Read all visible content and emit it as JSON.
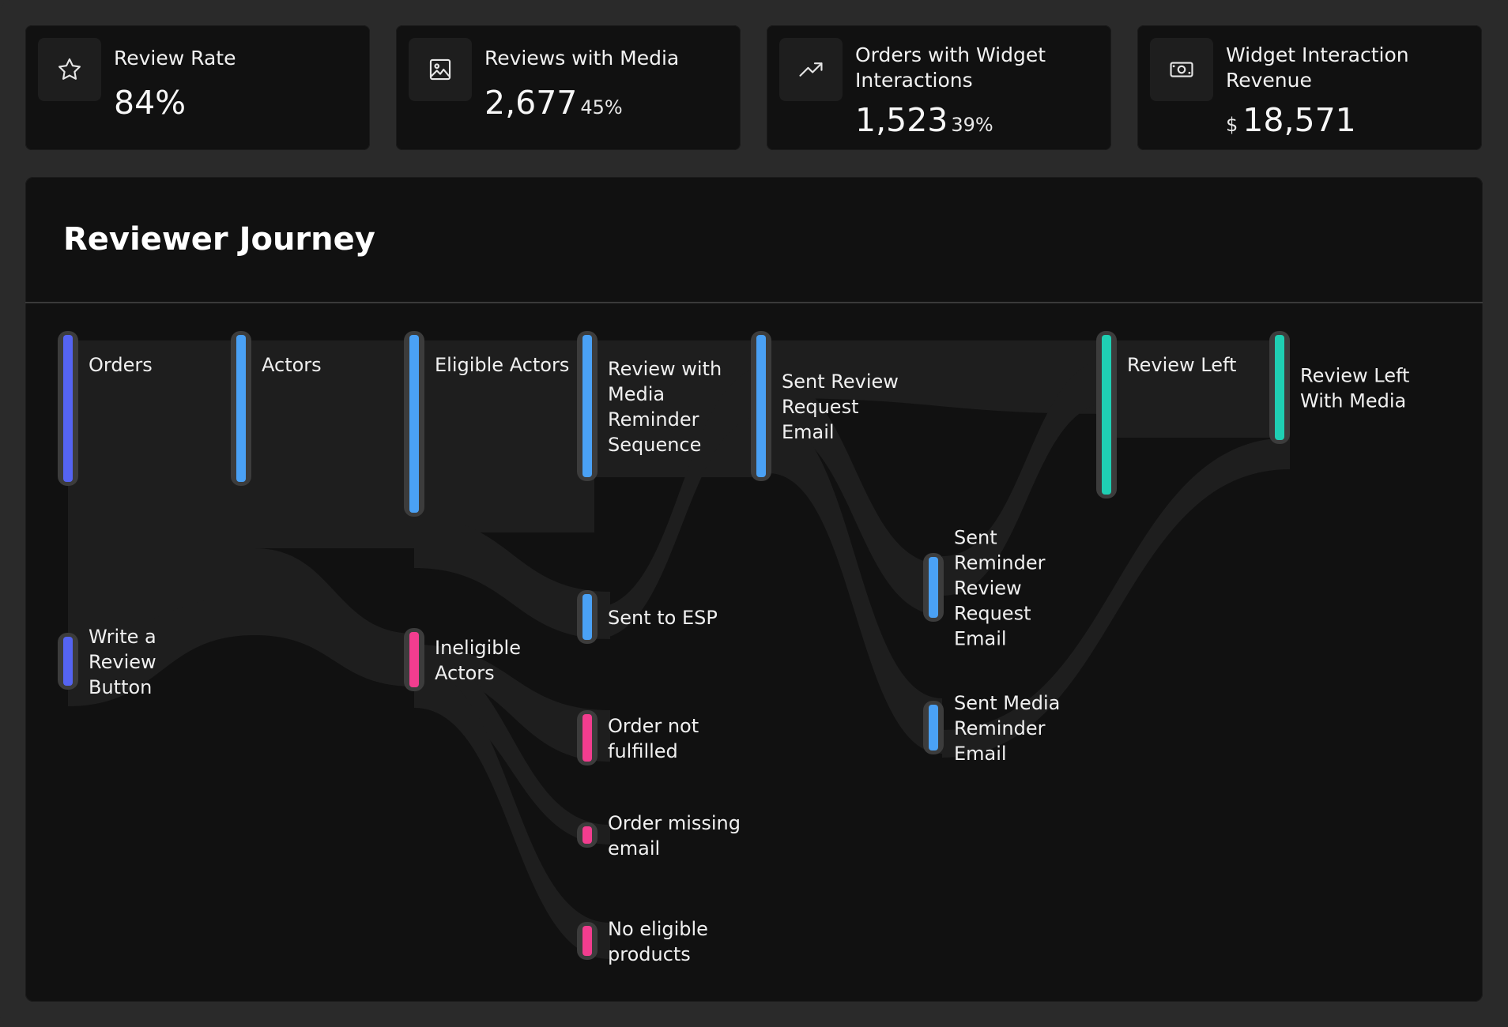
{
  "kpis": [
    {
      "label": "Review Rate",
      "value": "84%",
      "pct": "",
      "currency": "",
      "icon": "star-icon"
    },
    {
      "label": "Reviews with Media",
      "value": "2,677",
      "pct": "45%",
      "currency": "",
      "icon": "image-icon"
    },
    {
      "label": "Orders with Widget Interactions",
      "value": "1,523",
      "pct": "39%",
      "currency": "",
      "icon": "trending-up-icon"
    },
    {
      "label": "Widget Interaction Revenue",
      "value": "18,571",
      "pct": "",
      "currency": "$",
      "icon": "banknote-icon"
    }
  ],
  "journey": {
    "title": "Reviewer Journey",
    "colors": {
      "blue_dark": "#5564f2",
      "blue": "#4aa1f5",
      "pink": "#f23d8f",
      "teal": "#1fcfb3",
      "flow": "#1e1e1e",
      "node_border": "#3c3c3c"
    },
    "nodes": [
      {
        "id": "orders",
        "label": "Orders",
        "color": "blue_dark"
      },
      {
        "id": "write_review",
        "label": "Write a Review Button",
        "color": "blue_dark"
      },
      {
        "id": "actors",
        "label": "Actors",
        "color": "blue"
      },
      {
        "id": "eligible",
        "label": "Eligible Actors",
        "color": "blue"
      },
      {
        "id": "ineligible",
        "label": "Ineligible Actors",
        "color": "pink"
      },
      {
        "id": "media_seq",
        "label": "Review with Media Reminder Sequence",
        "color": "blue"
      },
      {
        "id": "esp",
        "label": "Sent to ESP",
        "color": "blue"
      },
      {
        "id": "not_fulfilled",
        "label": "Order not fulfilled",
        "color": "pink"
      },
      {
        "id": "missing_email",
        "label": "Order missing email",
        "color": "pink"
      },
      {
        "id": "no_products",
        "label": "No eligible products",
        "color": "pink"
      },
      {
        "id": "sent_request",
        "label": "Sent Review Request Email",
        "color": "blue"
      },
      {
        "id": "sent_reminder",
        "label": "Sent Reminder Review Request Email",
        "color": "blue"
      },
      {
        "id": "sent_media_reminder",
        "label": "Sent Media Reminder Email",
        "color": "blue"
      },
      {
        "id": "review_left",
        "label": "Review Left",
        "color": "teal"
      },
      {
        "id": "review_media",
        "label": "Review Left With Media",
        "color": "teal"
      }
    ]
  }
}
